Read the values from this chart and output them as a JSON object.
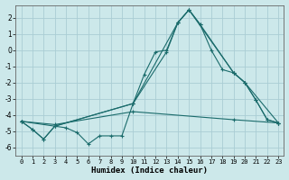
{
  "xlabel": "Humidex (Indice chaleur)",
  "xlim": [
    -0.5,
    23.5
  ],
  "ylim": [
    -6.5,
    2.8
  ],
  "xticks": [
    0,
    1,
    2,
    3,
    4,
    5,
    6,
    7,
    8,
    9,
    10,
    11,
    12,
    13,
    14,
    15,
    16,
    17,
    18,
    19,
    20,
    21,
    22,
    23
  ],
  "yticks": [
    -6,
    -5,
    -4,
    -3,
    -2,
    -1,
    0,
    1,
    2
  ],
  "background_color": "#cce8ea",
  "grid_color": "#aacdd4",
  "line_color": "#1a6b6b",
  "line1_x": [
    0,
    1,
    2,
    3,
    4,
    5,
    6,
    7,
    8,
    9,
    10,
    11,
    12,
    13,
    14,
    15,
    16,
    17,
    18,
    19,
    20,
    21,
    22,
    23
  ],
  "line1_y": [
    -4.4,
    -4.9,
    -5.5,
    -4.7,
    -4.8,
    -5.1,
    -5.8,
    -5.3,
    -5.3,
    -5.3,
    -3.3,
    -1.5,
    -0.1,
    0.0,
    1.7,
    2.5,
    1.6,
    0.0,
    -1.2,
    -1.4,
    -2.0,
    -3.1,
    -4.3,
    -4.5
  ],
  "line2_x": [
    0,
    1,
    2,
    3,
    10,
    13,
    14,
    15,
    16,
    19,
    20,
    21,
    22,
    23
  ],
  "line2_y": [
    -4.4,
    -4.9,
    -5.5,
    -4.7,
    -3.3,
    -0.1,
    1.7,
    2.5,
    1.6,
    -1.4,
    -2.0,
    -3.1,
    -4.3,
    -4.5
  ],
  "line3_x": [
    0,
    3,
    10,
    14,
    15,
    19,
    20,
    23
  ],
  "line3_y": [
    -4.4,
    -4.7,
    -3.3,
    1.7,
    2.5,
    -1.4,
    -2.0,
    -4.5
  ],
  "line4_x": [
    0,
    3,
    10,
    19,
    23
  ],
  "line4_y": [
    -4.4,
    -4.6,
    -3.8,
    -4.3,
    -4.5
  ]
}
